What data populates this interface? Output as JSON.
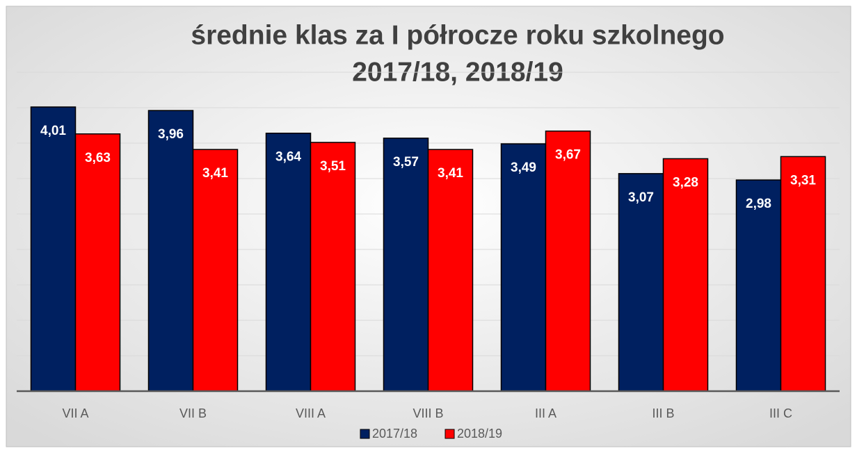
{
  "chart_data": {
    "type": "bar",
    "title": [
      "średnie klas za I półrocze roku szkolnego",
      "2017/18, 2018/19"
    ],
    "categories": [
      "VII A",
      "VII B",
      "VIII A",
      "VIII B",
      "III A",
      "III B",
      "III C"
    ],
    "series": [
      {
        "name": "2017/18",
        "color": "#002060",
        "values": [
          4.01,
          3.96,
          3.64,
          3.57,
          3.49,
          3.07,
          2.98
        ],
        "value_labels": [
          "4,01",
          "3,96",
          "3,64",
          "3,57",
          "3,49",
          "3,07",
          "2,98"
        ]
      },
      {
        "name": "2018/19",
        "color": "#ff0000",
        "values": [
          3.63,
          3.41,
          3.51,
          3.41,
          3.67,
          3.28,
          3.31
        ],
        "value_labels": [
          "3,63",
          "3,41",
          "3,51",
          "3,41",
          "3,67",
          "3,28",
          "3,31"
        ]
      }
    ],
    "ylim": [
      0,
      4.5
    ],
    "yticks": [
      0,
      0.5,
      1,
      1.5,
      2,
      2.5,
      3,
      3.5,
      4,
      4.5
    ],
    "grid": true,
    "legend": "bottom"
  }
}
